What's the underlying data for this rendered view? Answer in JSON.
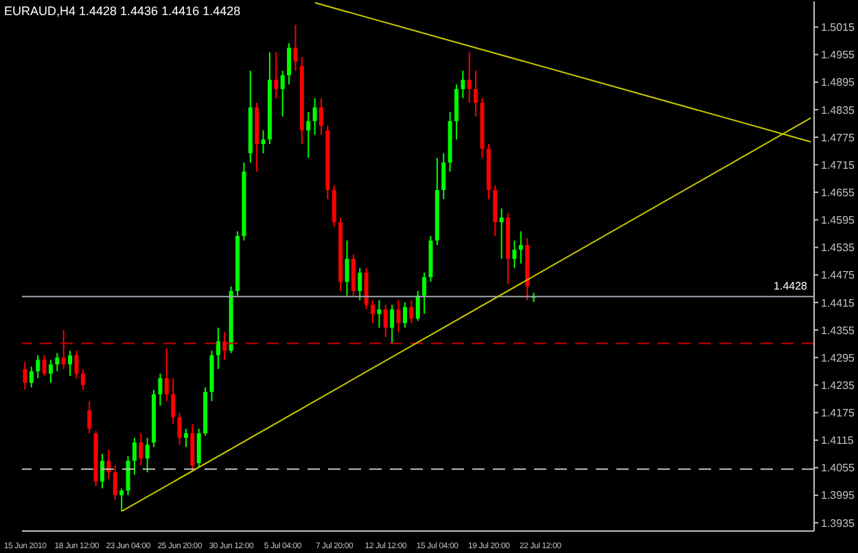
{
  "chart_data": {
    "type": "candlestick",
    "title": "EURAUD,H4 1.4428 1.4436 1.4416 1.4428",
    "categories": [
      "15 Jun 2010",
      null,
      null,
      null,
      null,
      null,
      null,
      null,
      "18 Jun 12:00",
      null,
      null,
      null,
      null,
      null,
      null,
      null,
      "23 Jun 04:00",
      null,
      null,
      null,
      null,
      null,
      null,
      null,
      "25 Jun 20:00",
      null,
      null,
      null,
      null,
      null,
      null,
      null,
      "30 Jun 12:00",
      null,
      null,
      null,
      null,
      null,
      null,
      null,
      "5 Jul 04:00",
      null,
      null,
      null,
      null,
      null,
      null,
      null,
      "7 Jul 20:00",
      null,
      null,
      null,
      null,
      null,
      null,
      null,
      "12 Jul 12:00",
      null,
      null,
      null,
      null,
      null,
      null,
      null,
      "15 Jul 04:00",
      null,
      null,
      null,
      null,
      null,
      null,
      null,
      "19 Jul 20:00",
      null,
      null,
      null,
      null,
      null,
      null,
      null,
      "22 Jul 12:00",
      null,
      null,
      null,
      null,
      null,
      null,
      null,
      null,
      null,
      null,
      null,
      null,
      null,
      null,
      null,
      null,
      null,
      null,
      null,
      null,
      null,
      null,
      null,
      null,
      null,
      null,
      null,
      null,
      null,
      null,
      null,
      null,
      null,
      null,
      null,
      null,
      null,
      null,
      null,
      null,
      null,
      null
    ],
    "ohlc": [
      [
        1.427,
        1.4285,
        1.4225,
        1.424
      ],
      [
        1.424,
        1.4275,
        1.423,
        1.4265
      ],
      [
        1.4265,
        1.43,
        1.425,
        1.429
      ],
      [
        1.429,
        1.43,
        1.4255,
        1.426
      ],
      [
        1.426,
        1.429,
        1.424,
        1.428
      ],
      [
        1.428,
        1.4305,
        1.4265,
        1.4295
      ],
      [
        1.4295,
        1.4355,
        1.427,
        1.428
      ],
      [
        1.428,
        1.431,
        1.4255,
        1.43
      ],
      [
        1.43,
        1.431,
        1.425,
        1.426
      ],
      [
        1.426,
        1.427,
        1.4225,
        1.4235
      ],
      [
        1.418,
        1.42,
        1.413,
        1.414
      ],
      [
        1.413,
        1.4135,
        1.4015,
        1.4025
      ],
      [
        1.4025,
        1.4085,
        1.401,
        1.407
      ],
      [
        1.407,
        1.4095,
        1.403,
        1.4045
      ],
      [
        1.4045,
        1.406,
        1.3985,
        1.3995
      ],
      [
        1.3995,
        1.401,
        1.396,
        1.4005
      ],
      [
        1.4005,
        1.408,
        1.3995,
        1.407
      ],
      [
        1.407,
        1.412,
        1.404,
        1.411
      ],
      [
        1.411,
        1.413,
        1.406,
        1.4075
      ],
      [
        1.4075,
        1.412,
        1.4045,
        1.4105
      ],
      [
        1.411,
        1.4225,
        1.41,
        1.4215
      ],
      [
        1.4215,
        1.426,
        1.419,
        1.425
      ],
      [
        1.425,
        1.4315,
        1.42,
        1.4215
      ],
      [
        1.4215,
        1.425,
        1.415,
        1.4165
      ],
      [
        1.4165,
        1.4175,
        1.4105,
        1.412
      ],
      [
        1.412,
        1.414,
        1.41,
        1.413
      ],
      [
        1.413,
        1.415,
        1.405,
        1.406
      ],
      [
        1.4065,
        1.414,
        1.4055,
        1.413
      ],
      [
        1.413,
        1.423,
        1.4125,
        1.422
      ],
      [
        1.422,
        1.431,
        1.42,
        1.43
      ],
      [
        1.43,
        1.436,
        1.427,
        1.433
      ],
      [
        1.433,
        1.435,
        1.429,
        1.431
      ],
      [
        1.431,
        1.445,
        1.4305,
        1.444
      ],
      [
        1.444,
        1.457,
        1.443,
        1.456
      ],
      [
        1.456,
        1.472,
        1.455,
        1.47
      ],
      [
        1.474,
        1.492,
        1.472,
        1.484
      ],
      [
        1.484,
        1.485,
        1.47,
        1.476
      ],
      [
        1.476,
        1.479,
        1.474,
        1.477
      ],
      [
        1.477,
        1.496,
        1.476,
        1.49
      ],
      [
        1.49,
        1.496,
        1.486,
        1.488
      ],
      [
        1.488,
        1.492,
        1.482,
        1.491
      ],
      [
        1.491,
        1.498,
        1.489,
        1.497
      ],
      [
        1.497,
        1.502,
        1.492,
        1.494
      ],
      [
        1.493,
        1.495,
        1.476,
        1.479
      ],
      [
        1.479,
        1.483,
        1.473,
        1.481
      ],
      [
        1.481,
        1.486,
        1.478,
        1.484
      ],
      [
        1.484,
        1.486,
        1.478,
        1.48
      ],
      [
        1.479,
        1.48,
        1.464,
        1.466
      ],
      [
        1.466,
        1.467,
        1.458,
        1.459
      ],
      [
        1.459,
        1.46,
        1.444,
        1.446
      ],
      [
        1.446,
        1.455,
        1.443,
        1.451
      ],
      [
        1.451,
        1.452,
        1.443,
        1.444
      ],
      [
        1.444,
        1.449,
        1.442,
        1.448
      ],
      [
        1.448,
        1.449,
        1.44,
        1.441
      ],
      [
        1.441,
        1.442,
        1.437,
        1.439
      ],
      [
        1.439,
        1.442,
        1.436,
        1.44
      ],
      [
        1.44,
        1.441,
        1.434,
        1.436
      ],
      [
        1.436,
        1.441,
        1.4325,
        1.44
      ],
      [
        1.44,
        1.442,
        1.435,
        1.437
      ],
      [
        1.437,
        1.4415,
        1.436,
        1.4405
      ],
      [
        1.4405,
        1.442,
        1.437,
        1.438
      ],
      [
        1.438,
        1.444,
        1.4375,
        1.443
      ],
      [
        1.443,
        1.448,
        1.439,
        1.447
      ],
      [
        1.447,
        1.456,
        1.446,
        1.455
      ],
      [
        1.455,
        1.473,
        1.454,
        1.466
      ],
      [
        1.466,
        1.474,
        1.464,
        1.472
      ],
      [
        1.472,
        1.483,
        1.47,
        1.481
      ],
      [
        1.481,
        1.489,
        1.477,
        1.488
      ],
      [
        1.488,
        1.492,
        1.486,
        1.49
      ],
      [
        1.49,
        1.496,
        1.485,
        1.488
      ],
      [
        1.488,
        1.492,
        1.482,
        1.485
      ],
      [
        1.485,
        1.486,
        1.473,
        1.475
      ],
      [
        1.475,
        1.476,
        1.464,
        1.466
      ],
      [
        1.466,
        1.467,
        1.456,
        1.459
      ],
      [
        1.459,
        1.462,
        1.451,
        1.46
      ],
      [
        1.46,
        1.461,
        1.4455,
        1.451
      ],
      [
        1.451,
        1.455,
        1.449,
        1.453
      ],
      [
        1.453,
        1.457,
        1.45,
        1.454
      ],
      [
        1.454,
        1.4555,
        1.442,
        1.445
      ],
      [
        1.4428,
        1.4436,
        1.4416,
        1.4428
      ],
      null,
      null,
      null,
      null,
      null,
      null,
      null,
      null,
      null,
      null,
      null,
      null,
      null,
      null,
      null,
      null,
      null,
      null,
      null,
      null,
      null,
      null,
      null,
      null,
      null,
      null,
      null,
      null,
      null,
      null,
      null,
      null,
      null,
      null,
      null,
      null,
      null,
      null,
      null,
      null,
      null,
      null,
      null
    ],
    "colors": [
      "#ff0000",
      "#00ff00",
      "#00ff00",
      "#ff0000",
      "#00ff00",
      "#00ff00",
      "#ff0000",
      "#00ff00",
      "#ff0000",
      "#ff0000",
      "#ff0000",
      "#ff0000",
      "#00ff00",
      "#ff0000",
      "#ff0000",
      "#00ff00",
      "#00ff00",
      "#00ff00",
      "#ff0000",
      "#00ff00",
      "#00ff00",
      "#00ff00",
      "#ff0000",
      "#ff0000",
      "#ff0000",
      "#00ff00",
      "#ff0000",
      "#00ff00",
      "#00ff00",
      "#00ff00",
      "#00ff00",
      "#ff0000",
      "#00ff00",
      "#00ff00",
      "#00ff00",
      "#00ff00",
      "#ff0000",
      "#00ff00",
      "#00ff00",
      "#ff0000",
      "#00ff00",
      "#00ff00",
      "#ff0000",
      "#ff0000",
      "#00ff00",
      "#00ff00",
      "#ff0000",
      "#ff0000",
      "#ff0000",
      "#ff0000",
      "#00ff00",
      "#ff0000",
      "#00ff00",
      "#ff0000",
      "#ff0000",
      "#00ff00",
      "#ff0000",
      "#00ff00",
      "#ff0000",
      "#00ff00",
      "#ff0000",
      "#00ff00",
      "#00ff00",
      "#00ff00",
      "#00ff00",
      "#00ff00",
      "#00ff00",
      "#00ff00",
      "#00ff00",
      "#ff0000",
      "#ff0000",
      "#ff0000",
      "#ff0000",
      "#ff0000",
      "#00ff00",
      "#ff0000",
      "#00ff00",
      "#00ff00",
      "#ff0000",
      "#00ff00",
      null,
      null,
      null,
      null,
      null,
      null,
      null,
      null,
      null,
      null,
      null,
      null,
      null,
      null,
      null,
      null,
      null,
      null,
      null,
      null,
      null,
      null,
      null,
      null,
      null,
      null,
      null,
      null,
      null,
      null,
      null,
      null,
      null,
      null,
      null,
      null,
      null,
      null,
      null,
      null,
      null,
      null,
      null
    ],
    "series": [
      {
        "type": "line",
        "color": "#c8c800",
        "values": [
          null,
          null,
          null,
          null,
          null,
          null,
          null,
          null,
          null,
          null,
          null,
          null,
          null,
          null,
          null,
          null,
          null,
          null,
          null,
          null,
          null,
          null,
          null,
          null,
          null,
          null,
          null,
          null,
          null,
          null,
          null,
          null,
          null,
          null,
          null,
          null,
          null,
          null,
          null,
          null,
          null,
          null,
          null,
          null,
          null,
          1.5068,
          null,
          null,
          null,
          null,
          null,
          null,
          null,
          null,
          null,
          null,
          null,
          null,
          null,
          null,
          null,
          null,
          null,
          null,
          null,
          null,
          null,
          null,
          null,
          null,
          null,
          null,
          null,
          null,
          null,
          null,
          null,
          null,
          null,
          null,
          null,
          null,
          null,
          null,
          null,
          null,
          null,
          null,
          null,
          null,
          null,
          null,
          null,
          null,
          null,
          null,
          null,
          null,
          null,
          null,
          null,
          null,
          null,
          null,
          null,
          null,
          null,
          null,
          null,
          null,
          null,
          null,
          null,
          null,
          null,
          null,
          null,
          null,
          null,
          null,
          null,
          null,
          1.4765
        ]
      },
      {
        "type": "line",
        "color": "#c8c800",
        "values": [
          null,
          null,
          null,
          null,
          null,
          null,
          null,
          null,
          null,
          null,
          null,
          null,
          null,
          null,
          null,
          1.396,
          null,
          null,
          null,
          null,
          null,
          null,
          null,
          null,
          null,
          null,
          null,
          null,
          null,
          null,
          null,
          null,
          null,
          null,
          null,
          null,
          null,
          null,
          null,
          null,
          null,
          null,
          null,
          null,
          null,
          null,
          null,
          null,
          null,
          null,
          null,
          null,
          null,
          null,
          null,
          null,
          null,
          null,
          null,
          null,
          null,
          null,
          null,
          null,
          null,
          null,
          null,
          null,
          null,
          null,
          null,
          null,
          null,
          null,
          null,
          null,
          null,
          null,
          null,
          null,
          null,
          null,
          null,
          null,
          null,
          null,
          null,
          null,
          null,
          null,
          null,
          null,
          null,
          null,
          null,
          null,
          null,
          null,
          null,
          null,
          null,
          null,
          null,
          null,
          null,
          null,
          null,
          null,
          null,
          null,
          null,
          null,
          null,
          null,
          null,
          null,
          null,
          null,
          null,
          null,
          null,
          null,
          1.4817
        ]
      }
    ],
    "ylim": [
      1.3917,
      1.5071
    ],
    "yticks": [
      1.3935,
      1.3995,
      1.4055,
      1.4115,
      1.4175,
      1.4235,
      1.4295,
      1.4355,
      1.4415,
      1.4475,
      1.4535,
      1.4595,
      1.4655,
      1.4715,
      1.4775,
      1.4835,
      1.4895,
      1.4955,
      1.5015
    ],
    "ref_lines": [
      {
        "axis": "y",
        "value": 1.4428,
        "label": "1.4428",
        "color": "#a0a4b0",
        "line_style": "solid"
      },
      {
        "axis": "y",
        "value": 1.4326,
        "color": "#cc0000",
        "line_style": "dashed"
      },
      {
        "axis": "y",
        "value": 1.4052,
        "color": "#c0c0c0",
        "line_style": "dashed"
      }
    ]
  }
}
